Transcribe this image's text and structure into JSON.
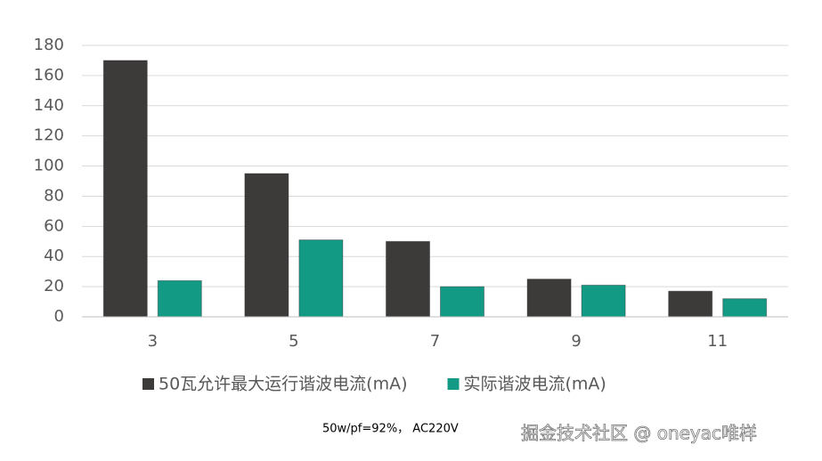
{
  "chart_data": {
    "type": "bar",
    "categories": [
      "3",
      "5",
      "7",
      "9",
      "11"
    ],
    "series": [
      {
        "name": "50瓦允许最大运行谐波电流(mA)",
        "color": "#3d3b3a",
        "values": [
          170,
          95,
          50,
          25,
          17
        ]
      },
      {
        "name": "实际谐波电流(mA)",
        "color": "#139a85",
        "values": [
          24,
          51,
          20,
          21,
          12
        ]
      }
    ],
    "ylim": [
      0,
      180
    ],
    "yticks": [
      0,
      20,
      40,
      60,
      80,
      100,
      120,
      140,
      160,
      180
    ],
    "grid": true,
    "annotation": "50w/pf=92%， AC220V",
    "watermark": "掘金技术社区 @ oneyac唯样"
  }
}
